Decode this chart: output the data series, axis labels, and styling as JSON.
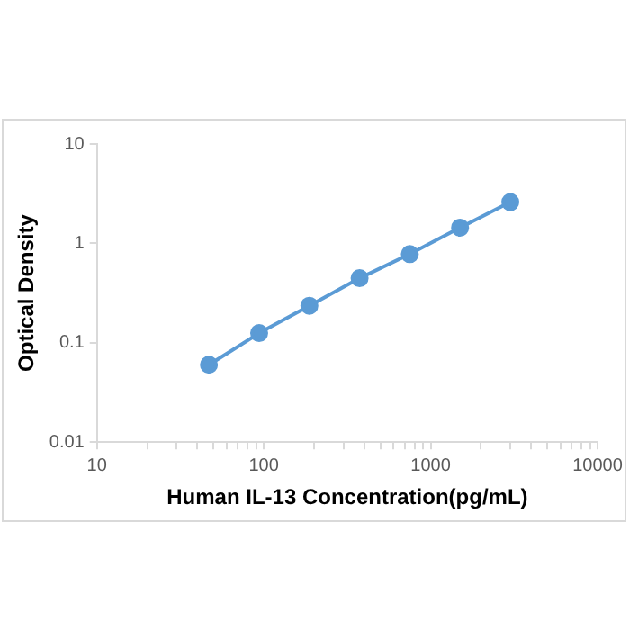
{
  "chart_data": {
    "type": "line",
    "xlabel": "Human IL-13 Concentration(pg/mL)",
    "ylabel": "Optical Density",
    "x": [
      46.9,
      93.8,
      187.5,
      375,
      750,
      1500,
      3000
    ],
    "series": [
      {
        "color": "#5b9bd5",
        "values": [
          0.06,
          0.125,
          0.236,
          0.446,
          0.78,
          1.44,
          2.6
        ]
      }
    ],
    "log": "xy",
    "xlim": [
      10,
      10000
    ],
    "ylim": [
      0.01,
      10
    ],
    "xticks": [
      10,
      {
        "value": 20,
        "label": null
      },
      {
        "value": 30,
        "label": null
      },
      {
        "value": 40,
        "label": null
      },
      {
        "value": 50,
        "label": null
      },
      {
        "value": 60,
        "label": null
      },
      {
        "value": 70,
        "label": null
      },
      {
        "value": 80,
        "label": null
      },
      {
        "value": 90,
        "label": null
      },
      100,
      {
        "value": 200,
        "label": null
      },
      {
        "value": 300,
        "label": null
      },
      {
        "value": 400,
        "label": null
      },
      {
        "value": 500,
        "label": null
      },
      {
        "value": 600,
        "label": null
      },
      {
        "value": 700,
        "label": null
      },
      {
        "value": 800,
        "label": null
      },
      {
        "value": 900,
        "label": null
      },
      1000,
      {
        "value": 2000,
        "label": null
      },
      {
        "value": 3000,
        "label": null
      },
      {
        "value": 4000,
        "label": null
      },
      {
        "value": 5000,
        "label": null
      },
      {
        "value": 6000,
        "label": null
      },
      {
        "value": 7000,
        "label": null
      },
      {
        "value": 8000,
        "label": null
      },
      {
        "value": 9000,
        "label": null
      },
      10000
    ],
    "yticks": [
      0.01,
      0.1,
      1,
      10
    ],
    "grid": false,
    "legend": false,
    "marker": "circle",
    "line_style": "solid"
  }
}
